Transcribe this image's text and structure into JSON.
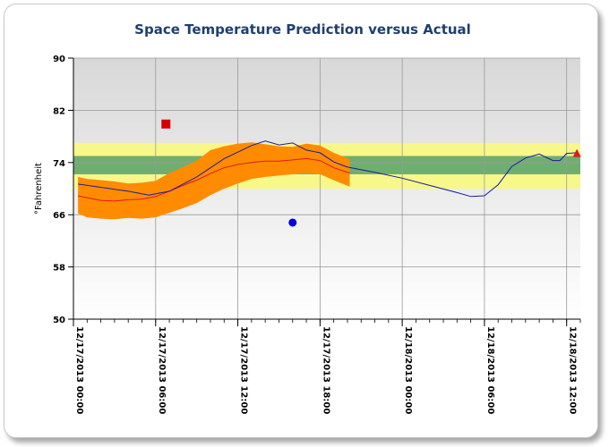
{
  "chart_data": {
    "type": "line",
    "title": "Space Temperature Prediction versus Actual",
    "ylabel": "°Fahrenheit",
    "xlabel": "",
    "ylim": [
      50,
      90
    ],
    "yticks": [
      50,
      58,
      66,
      74,
      82,
      90
    ],
    "xlim": [
      "2013-12-17 00:00",
      "2013-12-18 13:00"
    ],
    "xticks": [
      {
        "t": "2013-12-17 00:00",
        "label": "12/17/2013 00:00"
      },
      {
        "t": "2013-12-17 06:00",
        "label": "12/17/2013 06:00"
      },
      {
        "t": "2013-12-17 12:00",
        "label": "12/17/2013 12:00"
      },
      {
        "t": "2013-12-17 18:00",
        "label": "12/17/2013 18:00"
      },
      {
        "t": "2013-12-18 00:00",
        "label": "12/18/2013 00:00"
      },
      {
        "t": "2013-12-18 06:00",
        "label": "12/18/2013 06:00"
      },
      {
        "t": "2013-12-18 12:00",
        "label": "12/18/2013 12:00"
      }
    ],
    "grid": true,
    "bands": [
      {
        "from": 70,
        "to": 77,
        "color": "#f7f78a"
      },
      {
        "from": 72.2,
        "to": 75,
        "color": "#6fae6f"
      }
    ],
    "prediction_range": {
      "color": "#ff8c00",
      "t": [
        "2013-12-17 00:20",
        "2013-12-17 01:00",
        "2013-12-17 02:00",
        "2013-12-17 03:00",
        "2013-12-17 04:00",
        "2013-12-17 05:00",
        "2013-12-17 06:00",
        "2013-12-17 07:00",
        "2013-12-17 08:00",
        "2013-12-17 09:00",
        "2013-12-17 10:00",
        "2013-12-17 11:00",
        "2013-12-17 12:00",
        "2013-12-17 13:00",
        "2013-12-17 14:00",
        "2013-12-17 15:00",
        "2013-12-17 16:00",
        "2013-12-17 17:00",
        "2013-12-17 18:00",
        "2013-12-17 19:00",
        "2013-12-17 20:10"
      ],
      "lower": [
        66.2,
        65.6,
        65.4,
        65.3,
        65.5,
        65.4,
        65.6,
        66.3,
        67.0,
        67.8,
        69.0,
        70.0,
        70.8,
        71.5,
        71.8,
        72.0,
        72.2,
        72.4,
        72.2,
        71.3,
        70.3
      ],
      "upper": [
        71.8,
        71.5,
        71.3,
        71.1,
        70.8,
        70.9,
        71.2,
        72.4,
        73.3,
        74.3,
        75.9,
        76.5,
        76.9,
        77.1,
        76.8,
        76.5,
        76.4,
        76.9,
        76.6,
        75.5,
        74.5
      ]
    },
    "series": [
      {
        "name": "",
        "color": "#e8141e",
        "t": [
          "2013-12-17 00:20",
          "2013-12-17 01:00",
          "2013-12-17 02:00",
          "2013-12-17 03:00",
          "2013-12-17 04:00",
          "2013-12-17 05:00",
          "2013-12-17 06:00",
          "2013-12-17 07:00",
          "2013-12-17 08:00",
          "2013-12-17 09:00",
          "2013-12-17 10:00",
          "2013-12-17 11:00",
          "2013-12-17 12:00",
          "2013-12-17 13:00",
          "2013-12-17 14:00",
          "2013-12-17 15:00",
          "2013-12-17 16:00",
          "2013-12-17 17:00",
          "2013-12-17 18:00",
          "2013-12-17 19:00",
          "2013-12-17 20:10"
        ],
        "values": [
          68.9,
          68.6,
          68.2,
          68.1,
          68.3,
          68.4,
          68.8,
          69.6,
          70.5,
          71.3,
          72.3,
          73.2,
          73.7,
          74.0,
          74.2,
          74.2,
          74.4,
          74.6,
          74.3,
          73.2,
          72.4
        ]
      },
      {
        "name": "",
        "color": "#1a1aa0",
        "t": [
          "2013-12-17 00:20",
          "2013-12-17 02:00",
          "2013-12-17 04:00",
          "2013-12-17 05:30",
          "2013-12-17 07:00",
          "2013-12-17 09:00",
          "2013-12-17 11:00",
          "2013-12-17 13:00",
          "2013-12-17 14:00",
          "2013-12-17 15:00",
          "2013-12-17 16:00",
          "2013-12-17 17:00",
          "2013-12-17 18:00",
          "2013-12-17 19:00",
          "2013-12-17 20:00",
          "2013-12-17 22:00",
          "2013-12-18 00:00",
          "2013-12-18 02:00",
          "2013-12-18 04:00",
          "2013-12-18 05:00",
          "2013-12-18 06:00",
          "2013-12-18 07:00",
          "2013-12-18 08:00",
          "2013-12-18 09:00",
          "2013-12-18 10:00",
          "2013-12-18 11:00",
          "2013-12-18 11:30",
          "2013-12-18 12:00",
          "2013-12-18 12:40"
        ],
        "values": [
          70.7,
          70.2,
          69.6,
          69.0,
          69.6,
          71.8,
          74.6,
          76.6,
          77.3,
          76.7,
          77.0,
          75.9,
          75.5,
          74.1,
          73.3,
          72.5,
          71.6,
          70.5,
          69.4,
          68.8,
          68.9,
          70.6,
          73.4,
          74.7,
          75.3,
          74.3,
          74.3,
          75.4,
          75.5
        ]
      }
    ],
    "markers": [
      {
        "t": "2013-12-17 06:45",
        "y": 79.9,
        "shape": "square",
        "color": "#d40000"
      },
      {
        "t": "2013-12-17 16:00",
        "y": 64.8,
        "shape": "circle",
        "color": "#0000e0"
      },
      {
        "t": "2013-12-18 12:45",
        "y": 75.4,
        "shape": "triangle",
        "color": "#e8141e"
      }
    ]
  }
}
